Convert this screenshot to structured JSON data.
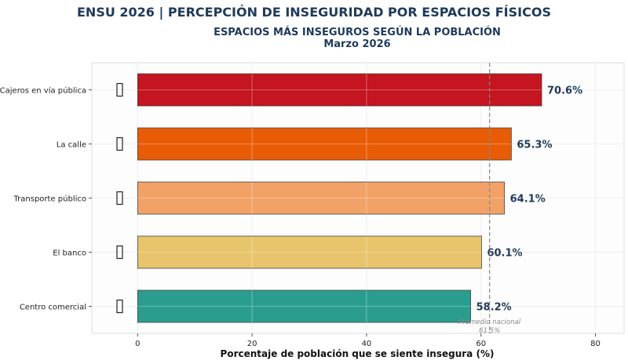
{
  "suptitle": "ENSU 2026 | PERCEPCIÓN DE INSEGURIDAD POR ESPACIOS FÍSICOS",
  "chart_data": {
    "type": "bar",
    "orientation": "horizontal",
    "title": "ESPACIOS MÁS INSEGUROS SEGÚN LA POBLACIÓN",
    "subtitle": "Marzo 2026",
    "xlabel": "Porcentaje de población que se siente insegura (%)",
    "ylabel": "",
    "categories": [
      "Cajeros en vía pública",
      "La calle",
      "Transporte público",
      "El banco",
      "Centro comercial"
    ],
    "values": [
      70.6,
      65.3,
      64.1,
      60.1,
      58.2
    ],
    "value_labels": [
      "70.6%",
      "65.3%",
      "64.1%",
      "60.1%",
      "58.2%"
    ],
    "colors": [
      "#c41520",
      "#e85c06",
      "#f2a267",
      "#e8c46c",
      "#2a9d8f"
    ],
    "xlim": [
      -8,
      85
    ],
    "xticks": [
      0,
      20,
      40,
      60,
      80
    ],
    "grid": true,
    "reference_line": {
      "value": 61.5,
      "label_line1": "Promedio nacional",
      "label_line2": "61.5%"
    }
  }
}
